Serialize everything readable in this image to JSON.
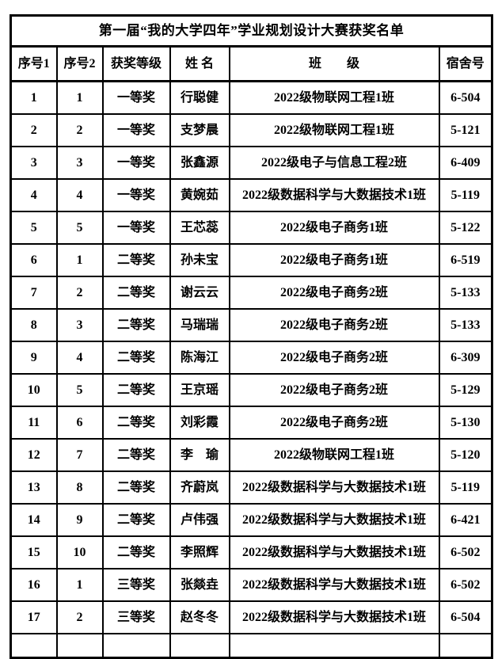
{
  "document": {
    "title": "第一届“我的大学四年”学业规划设计大赛获奖名单"
  },
  "table": {
    "headers": {
      "no1": "序号1",
      "no2": "序号2",
      "award": "获奖等级",
      "name": "姓 名",
      "class": "班　　级",
      "dorm": "宿舍号"
    },
    "rows": [
      [
        "1",
        "1",
        "一等奖",
        "行聪健",
        "2022级物联网工程1班",
        "6-504"
      ],
      [
        "2",
        "2",
        "一等奖",
        "支梦晨",
        "2022级物联网工程1班",
        "5-121"
      ],
      [
        "3",
        "3",
        "一等奖",
        "张鑫源",
        "2022级电子与信息工程2班",
        "6-409"
      ],
      [
        "4",
        "4",
        "一等奖",
        "黄婉茹",
        "2022级数据科学与大数据技术1班",
        "5-119"
      ],
      [
        "5",
        "5",
        "一等奖",
        "王芯蕊",
        "2022级电子商务1班",
        "5-122"
      ],
      [
        "6",
        "1",
        "二等奖",
        "孙未宝",
        "2022级电子商务1班",
        "6-519"
      ],
      [
        "7",
        "2",
        "二等奖",
        "谢云云",
        "2022级电子商务2班",
        "5-133"
      ],
      [
        "8",
        "3",
        "二等奖",
        "马瑞瑞",
        "2022级电子商务2班",
        "5-133"
      ],
      [
        "9",
        "4",
        "二等奖",
        "陈海江",
        "2022级电子商务2班",
        "6-309"
      ],
      [
        "10",
        "5",
        "二等奖",
        "王京瑶",
        "2022级电子商务2班",
        "5-129"
      ],
      [
        "11",
        "6",
        "二等奖",
        "刘彩霞",
        "2022级电子商务2班",
        "5-130"
      ],
      [
        "12",
        "7",
        "二等奖",
        "李　瑜",
        "2022级物联网工程1班",
        "5-120"
      ],
      [
        "13",
        "8",
        "二等奖",
        "齐蔚岚",
        "2022级数据科学与大数据技术1班",
        "5-119"
      ],
      [
        "14",
        "9",
        "二等奖",
        "卢伟强",
        "2022级数据科学与大数据技术1班",
        "6-421"
      ],
      [
        "15",
        "10",
        "二等奖",
        "李照辉",
        "2022级数据科学与大数据技术1班",
        "6-502"
      ],
      [
        "16",
        "1",
        "三等奖",
        "张燚垚",
        "2022级数据科学与大数据技术1班",
        "6-502"
      ],
      [
        "17",
        "2",
        "三等奖",
        "赵冬冬",
        "2022级数据科学与大数据技术1班",
        "6-504"
      ]
    ],
    "cell_names": [
      "cell-no1",
      "cell-no2",
      "cell-award",
      "cell-name",
      "cell-class",
      "cell-dorm"
    ]
  },
  "colors": {
    "background": "#ffffff",
    "border": "#000000",
    "text": "#000000"
  }
}
